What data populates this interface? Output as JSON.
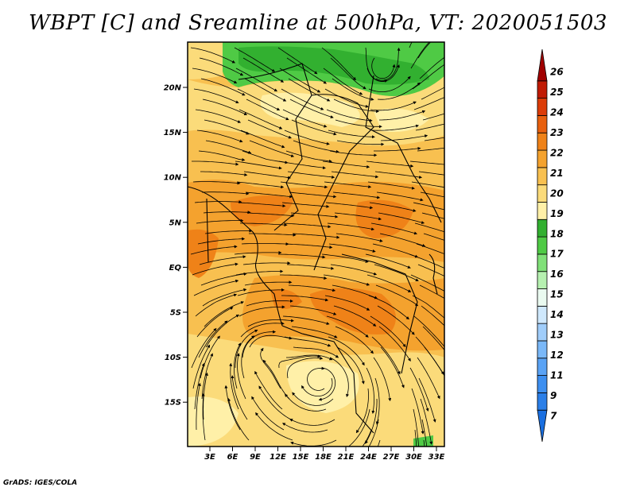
{
  "title": "WBPT [C] and Sreamline at 500hPa, VT: 2020051503",
  "credit": "GrADS: IGES/COLA",
  "map": {
    "lat_ticks": [
      "20N",
      "15N",
      "10N",
      "5N",
      "EQ",
      "5S",
      "10S",
      "15S"
    ],
    "lon_ticks": [
      "3E",
      "6E",
      "9E",
      "12E",
      "15E",
      "18E",
      "21E",
      "24E",
      "27E",
      "30E",
      "33E"
    ]
  },
  "colorbar": {
    "labels": [
      "7",
      "9",
      "11",
      "12",
      "13",
      "14",
      "15",
      "16",
      "17",
      "18",
      "19",
      "20",
      "21",
      "22",
      "23",
      "24",
      "25",
      "26"
    ],
    "colors": [
      "#1a6fe0",
      "#2b7fe8",
      "#3d8ff0",
      "#5aa3f5",
      "#7ab8f8",
      "#a0cdfa",
      "#cfe8fc",
      "#eafaf0",
      "#b6f0b0",
      "#80e078",
      "#4fca45",
      "#32b030",
      "#fff0a8",
      "#fbdb7a",
      "#f8c050",
      "#f4a22e",
      "#ef8218",
      "#e8600e",
      "#dc3c08",
      "#c01a04",
      "#a00000"
    ]
  },
  "icons": {
    "contour-fill": "contour-fill-layer",
    "streamlines": "streamline-layer",
    "coastlines": "boundary-layer"
  }
}
